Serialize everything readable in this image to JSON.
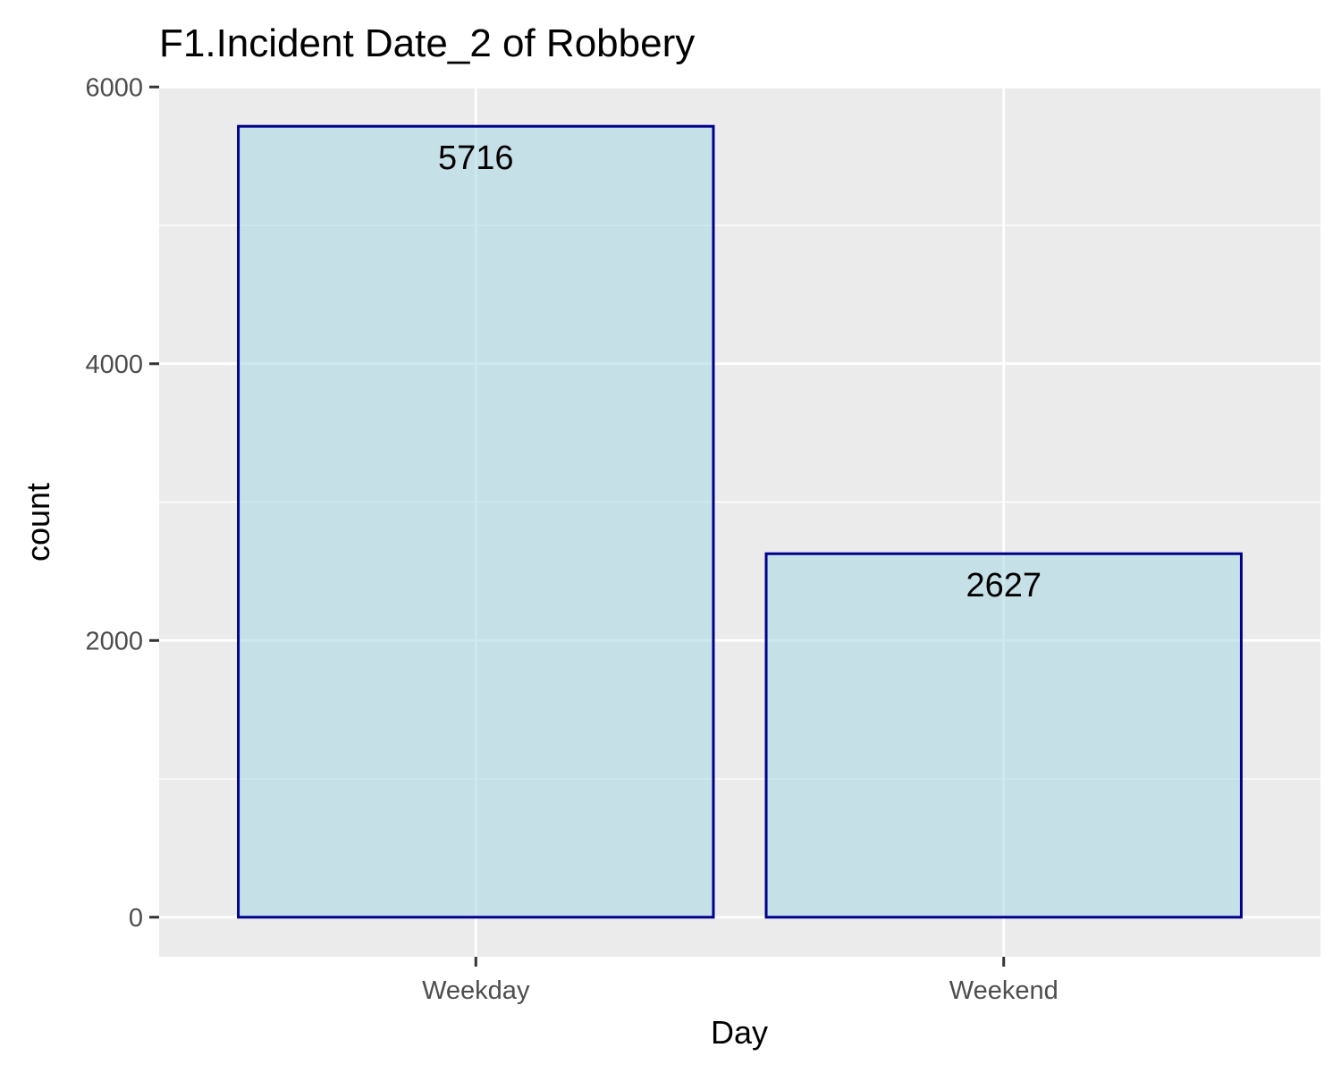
{
  "chart_data": {
    "type": "bar",
    "title": "F1.Incident Date_2 of Robbery",
    "xlabel": "Day",
    "ylabel": "count",
    "categories": [
      "Weekday",
      "Weekend"
    ],
    "values": [
      5716,
      2627
    ],
    "data_labels": [
      "5716",
      "2627"
    ],
    "y_ticks": [
      0,
      2000,
      4000,
      6000
    ],
    "y_tick_labels": [
      "0",
      "2000",
      "4000",
      "6000"
    ],
    "ylim": [
      -285.8,
      6001.8
    ],
    "grid": true,
    "legend": "none",
    "colors": {
      "panel_background": "#ebebeb",
      "grid": "#ffffff",
      "bar_fill": "#add8e6",
      "bar_fill_opacity": 0.6,
      "bar_outline": "#00008b",
      "tick": "#333333"
    }
  }
}
